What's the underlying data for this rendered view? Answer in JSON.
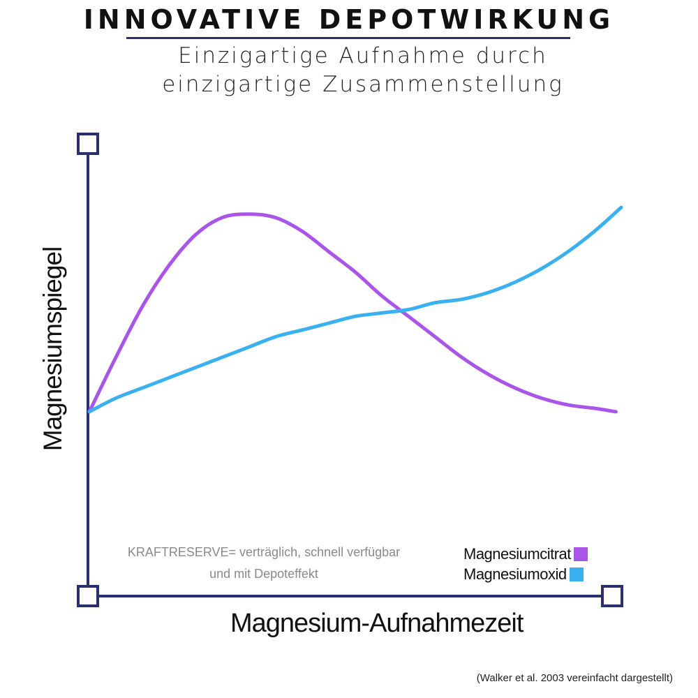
{
  "title": "INNOVATIVE DEPOTWIRKUNG",
  "subtitle_lines": [
    "Einzigartige Aufnahme durch",
    "einzigartige Zusammenstellung"
  ],
  "note_lines": [
    "KRAFTRESERVE= verträglich, schnell verfügbar",
    "und mit Depoteffekt"
  ],
  "source": "(Walker et al. 2003  vereinfacht dargestellt)",
  "colors": {
    "axis": "#2a2f6e",
    "magnesiumcitrat": "#a855e8",
    "magnesiumoxid": "#3ab0ef",
    "note": "#8a8a8a"
  },
  "chart_data": {
    "type": "line",
    "xlabel": "Magnesium-Aufnahmezeit",
    "ylabel": "Magnesiumspiegel",
    "xlim": [
      0,
      100
    ],
    "ylim": [
      0,
      100
    ],
    "grid": false,
    "legend_position": "bottom-right",
    "series": [
      {
        "name": "Magnesiumcitrat",
        "color": "#a855e8",
        "x": [
          0,
          5,
          10,
          15,
          20,
          25,
          30,
          35,
          40,
          45,
          50,
          55,
          60,
          65,
          70,
          75,
          80,
          85,
          90,
          95,
          99
        ],
        "y": [
          24,
          40,
          55,
          67,
          76,
          81,
          82,
          81,
          77,
          71,
          65,
          58,
          52,
          46,
          40,
          35,
          31,
          28,
          26,
          25,
          24
        ]
      },
      {
        "name": "Magnesiumoxid",
        "color": "#3ab0ef",
        "x": [
          0,
          5,
          10,
          15,
          20,
          25,
          30,
          35,
          40,
          45,
          50,
          55,
          60,
          65,
          70,
          75,
          80,
          85,
          90,
          95,
          100
        ],
        "y": [
          24,
          28,
          31,
          34,
          37,
          40,
          43,
          46,
          48,
          50,
          52,
          53,
          54,
          56,
          57,
          59,
          62,
          66,
          71,
          77,
          84
        ]
      }
    ]
  }
}
